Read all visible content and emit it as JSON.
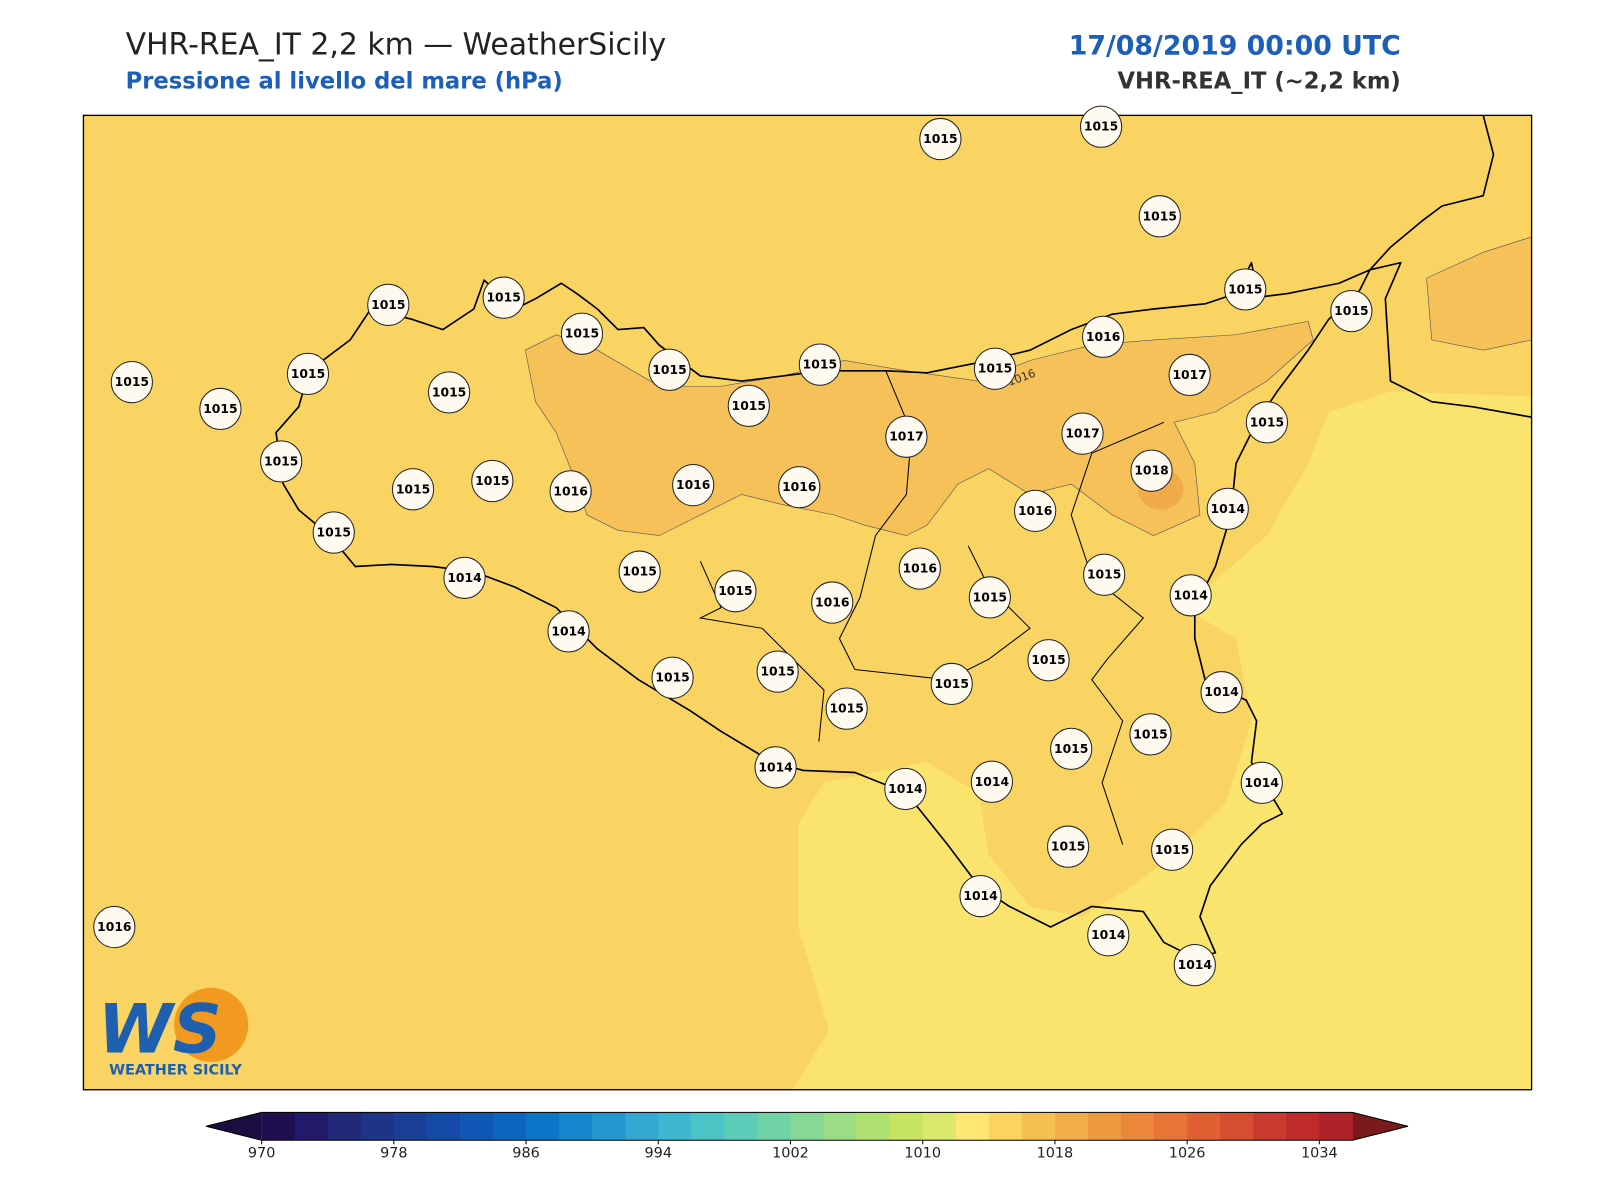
{
  "header": {
    "title": "VHR-REA_IT 2,2 km — WeatherSicily",
    "subtitle": "Pressione al livello del mare (hPa)",
    "datetime": "17/08/2019 00:00 UTC",
    "model": "VHR-REA_IT (~2,2 km)"
  },
  "map": {
    "contour_label": "1016",
    "logo": {
      "mark": "WS",
      "name": "WEATHER SICILY"
    },
    "field_colors": {
      "base": "#f9d462",
      "low": "#fbe46e",
      "high": "#f5c158"
    },
    "stations": [
      1015,
      1015,
      1015,
      1015,
      1015,
      1015,
      1015,
      1015,
      1015,
      1015,
      1015,
      1015,
      1015,
      1015,
      1015,
      1015,
      1016,
      1017,
      1015,
      1015,
      1015,
      1015,
      1016,
      1016,
      1016,
      1017,
      1017,
      1018,
      1016,
      1014,
      1015,
      1014,
      1015,
      1015,
      1016,
      1016,
      1015,
      1015,
      1014,
      1014,
      1015,
      1015,
      1015,
      1015,
      1015,
      1014,
      1015,
      1015,
      1014,
      1014,
      1014,
      1014,
      1015,
      1015,
      1014,
      1014,
      1014,
      1016
    ]
  },
  "colorbar": {
    "lim": [
      970,
      1036
    ],
    "ticks": [
      970,
      978,
      986,
      994,
      1002,
      1010,
      1018,
      1026,
      1034
    ],
    "colors": [
      "#200f4f",
      "#231a6a",
      "#212878",
      "#1e3488",
      "#1a3f99",
      "#1549a8",
      "#1057b6",
      "#0c66c0",
      "#0b76c8",
      "#1486cd",
      "#2297d0",
      "#33a8d2",
      "#3eb8cf",
      "#4ac4c5",
      "#5ccdb8",
      "#70d3a8",
      "#86d896",
      "#9bdc84",
      "#b0e06f",
      "#c6e461",
      "#dae86e",
      "#fde672",
      "#fbd35f",
      "#f6c050",
      "#f3ad48",
      "#f09a3f",
      "#ec873a",
      "#e87436",
      "#e06033",
      "#d64d30",
      "#cb3a2e",
      "#bf2a2b",
      "#b0222a"
    ],
    "extend_colors": [
      "#1a0d3f",
      "#7a1a1a"
    ]
  }
}
